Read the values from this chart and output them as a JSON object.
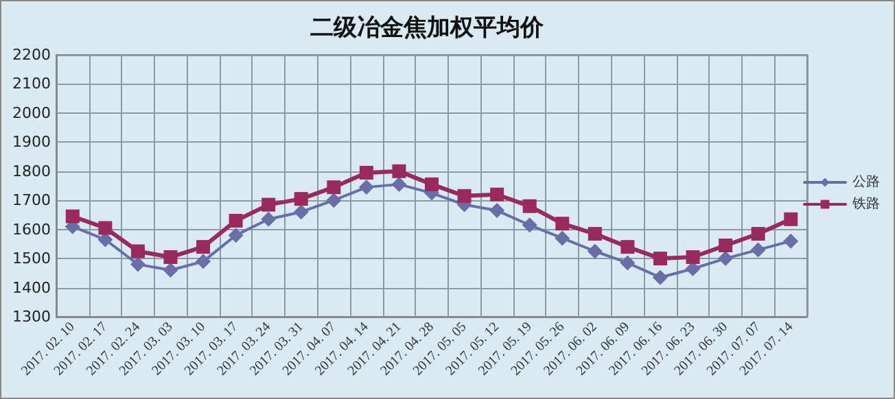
{
  "chart_data": {
    "type": "line",
    "title": "二级冶金焦加权平均价",
    "categories": [
      "2017. 02. 10",
      "2017. 02. 17",
      "2017. 02. 24",
      "2017. 03. 03",
      "2017. 03. 10",
      "2017. 03. 17",
      "2017. 03. 24",
      "2017. 03. 31",
      "2017. 04. 07",
      "2017. 04. 14",
      "2017. 04. 21",
      "2017. 04. 28",
      "2017. 05. 05",
      "2017. 05. 12",
      "2017. 05. 19",
      "2017. 05. 26",
      "2017. 06. 02",
      "2017. 06. 09",
      "2017. 06. 16",
      "2017. 06. 23",
      "2017. 06. 30",
      "2017. 07. 07",
      "2017. 07. 14"
    ],
    "series": [
      {
        "name": "公路",
        "color": "#6a6ea8",
        "marker": "diamond",
        "values": [
          1610,
          1565,
          1480,
          1460,
          1490,
          1580,
          1635,
          1660,
          1700,
          1745,
          1755,
          1725,
          1685,
          1665,
          1615,
          1570,
          1525,
          1485,
          1435,
          1465,
          1500,
          1530,
          1560
        ]
      },
      {
        "name": "铁路",
        "color": "#9b2a5c",
        "marker": "square",
        "values": [
          1645,
          1605,
          1525,
          1505,
          1540,
          1630,
          1685,
          1705,
          1745,
          1795,
          1800,
          1755,
          1715,
          1720,
          1680,
          1620,
          1585,
          1540,
          1500,
          1505,
          1545,
          1585,
          1635
        ]
      }
    ],
    "ylim": [
      1300,
      2200
    ],
    "yticks": [
      1300,
      1400,
      1500,
      1600,
      1700,
      1800,
      1900,
      2000,
      2100,
      2200
    ],
    "grid": true,
    "legend": "right",
    "line_style": "solid"
  }
}
